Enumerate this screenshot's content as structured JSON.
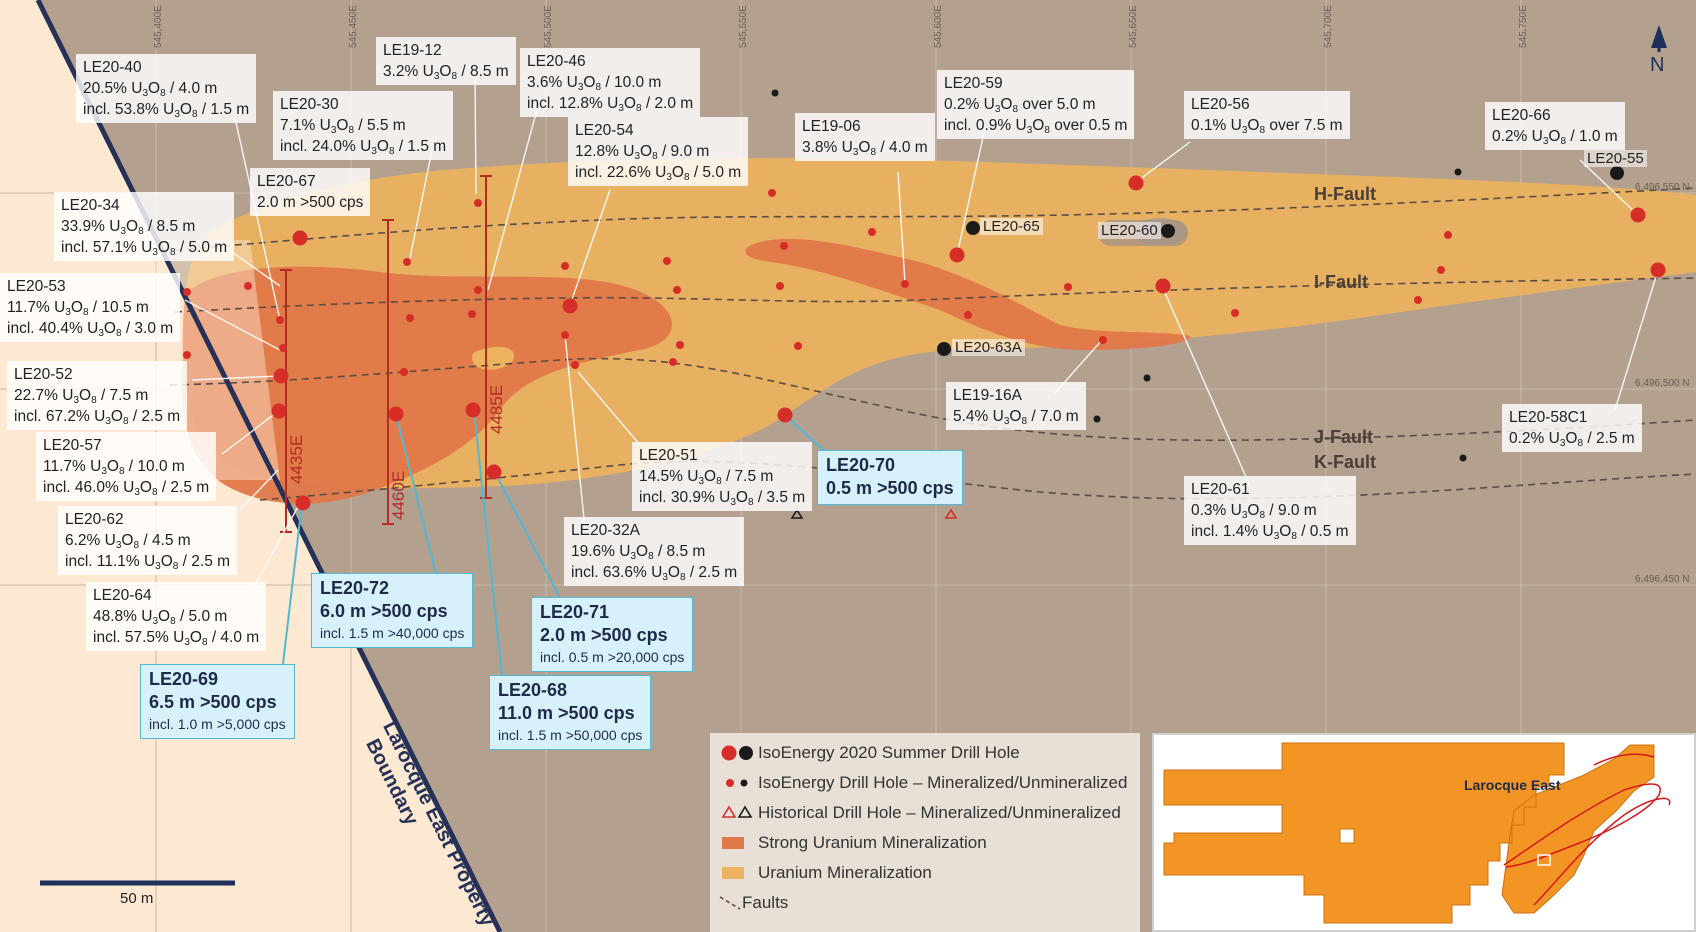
{
  "colors": {
    "background": "#b3a08f",
    "boundary_fill": "#fde8d2",
    "boundary_line": "#253156",
    "uranium_mineralization": "#ebb25f",
    "strong_uranium_mineralization": "#e07848",
    "mineralized_hole": "#d62d28",
    "unmineralized_hole": "#1a1a1a",
    "cps_box_fill": "#d7f1fb",
    "cps_box_border": "#53b7d6",
    "section_line": "#b42a24",
    "inset_property": "#f39524"
  },
  "grid": {
    "eastings": [
      "545,400E",
      "545,450E",
      "545,500E",
      "545,550E",
      "545,600E",
      "545,650E",
      "545,700E",
      "545,750E"
    ],
    "northings": [
      "6,496,550 N",
      "6,496,500 N",
      "6,496,450 N"
    ]
  },
  "north_label": "N",
  "faults": [
    "H-Fault",
    "I-Fault",
    "J-Fault",
    "K-Fault"
  ],
  "sections": [
    "4435E",
    "4460E",
    "4485E"
  ],
  "boundary_label": [
    "Larocque East Property",
    "Boundary"
  ],
  "assay_labels": [
    {
      "hole": "LE20-40",
      "l1": [
        "20.5% U",
        "3",
        "O",
        "8",
        " / 4.0 m"
      ],
      "l2": [
        "incl. 53.8% U",
        "3",
        "O",
        "8",
        " / 1.5 m"
      ]
    },
    {
      "hole": "LE19-12",
      "l1": [
        "3.2% U",
        "3",
        "O",
        "8",
        " / 8.5 m"
      ],
      "l2": null
    },
    {
      "hole": "LE20-46",
      "l1": [
        "3.6% U",
        "3",
        "O",
        "8",
        " / 10.0 m"
      ],
      "l2": [
        "incl. 12.8% U",
        "3",
        "O",
        "8",
        " / 2.0 m"
      ]
    },
    {
      "hole": "LE20-30",
      "l1": [
        "7.1% U",
        "3",
        "O",
        "8",
        " / 5.5 m"
      ],
      "l2": [
        "incl. 24.0% U",
        "3",
        "O",
        "8",
        " / 1.5 m"
      ]
    },
    {
      "hole": "LE20-54",
      "l1": [
        "12.8% U",
        "3",
        "O",
        "8",
        " / 9.0 m"
      ],
      "l2": [
        "incl. 22.6% U",
        "3",
        "O",
        "8",
        " / 5.0 m"
      ]
    },
    {
      "hole": "LE19-06",
      "l1": [
        "3.8% U",
        "3",
        "O",
        "8",
        " / 4.0 m"
      ],
      "l2": null
    },
    {
      "hole": "LE20-59",
      "l1": [
        "0.2% U",
        "3",
        "O",
        "8",
        " over 5.0 m"
      ],
      "l2": [
        "incl. 0.9% U",
        "3",
        "O",
        "8",
        " over 0.5 m"
      ]
    },
    {
      "hole": "LE20-56",
      "l1": [
        "0.1% U",
        "3",
        "O",
        "8",
        " over 7.5 m"
      ],
      "l2": null
    },
    {
      "hole": "LE20-66",
      "l1": [
        "0.2% U",
        "3",
        "O",
        "8",
        " / 1.0 m"
      ],
      "l2": null
    },
    {
      "hole": "LE20-67",
      "l1": [
        "2.0 m >500 cps",
        "",
        "",
        "",
        ""
      ],
      "l2": null
    },
    {
      "hole": "LE20-34",
      "l1": [
        "33.9% U",
        "3",
        "O",
        "8",
        " / 8.5 m"
      ],
      "l2": [
        "incl. 57.1% U",
        "3",
        "O",
        "8",
        " / 5.0 m"
      ]
    },
    {
      "hole": "LE20-53",
      "l1": [
        "11.7% U",
        "3",
        "O",
        "8",
        " / 10.5 m"
      ],
      "l2": [
        "incl. 40.4% U",
        "3",
        "O",
        "8",
        " / 3.0 m"
      ]
    },
    {
      "hole": "LE20-52",
      "l1": [
        "22.7% U",
        "3",
        "O",
        "8",
        " / 7.5 m"
      ],
      "l2": [
        "incl. 67.2% U",
        "3",
        "O",
        "8",
        " / 2.5 m"
      ]
    },
    {
      "hole": "LE20-57",
      "l1": [
        "11.7% U",
        "3",
        "O",
        "8",
        " / 10.0 m"
      ],
      "l2": [
        "incl. 46.0% U",
        "3",
        "O",
        "8",
        " / 2.5 m"
      ]
    },
    {
      "hole": "LE20-62",
      "l1": [
        "6.2% U",
        "3",
        "O",
        "8",
        " / 4.5 m"
      ],
      "l2": [
        "incl. 11.1% U",
        "3",
        "O",
        "8",
        " / 2.5 m"
      ]
    },
    {
      "hole": "LE20-64",
      "l1": [
        "48.8% U",
        "3",
        "O",
        "8",
        " / 5.0 m"
      ],
      "l2": [
        "incl. 57.5% U",
        "3",
        "O",
        "8",
        " / 4.0 m"
      ]
    },
    {
      "hole": "LE20-51",
      "l1": [
        "14.5% U",
        "3",
        "O",
        "8",
        " / 7.5 m"
      ],
      "l2": [
        "incl. 30.9% U",
        "3",
        "O",
        "8",
        " / 3.5 m"
      ]
    },
    {
      "hole": "LE20-32A",
      "l1": [
        "19.6% U",
        "3",
        "O",
        "8",
        " / 8.5 m"
      ],
      "l2": [
        "incl. 63.6% U",
        "3",
        "O",
        "8",
        " / 2.5 m"
      ]
    },
    {
      "hole": "LE19-16A",
      "l1": [
        "5.4% U",
        "3",
        "O",
        "8",
        " / 7.0 m"
      ],
      "l2": null
    },
    {
      "hole": "LE20-61",
      "l1": [
        "0.3% U",
        "3",
        "O",
        "8",
        " / 9.0 m"
      ],
      "l2": [
        "incl. 1.4% U",
        "3",
        "O",
        "8",
        " / 0.5 m"
      ]
    },
    {
      "hole": "LE20-58C1",
      "l1": [
        "0.2% U",
        "3",
        "O",
        "8",
        " / 2.5 m"
      ],
      "l2": null
    }
  ],
  "cps_boxes": [
    {
      "hole": "LE20-70",
      "line1": "0.5 m >500 cps",
      "line2": null
    },
    {
      "hole": "LE20-72",
      "line1": "6.0 m >500 cps",
      "line2": "incl. 1.5 m >40,000 cps"
    },
    {
      "hole": "LE20-71",
      "line1": "2.0 m >500 cps",
      "line2": "incl. 0.5 m >20,000 cps"
    },
    {
      "hole": "LE20-68",
      "line1": "11.0 m >500 cps",
      "line2": "incl. 1.5 m >50,000 cps"
    },
    {
      "hole": "LE20-69",
      "line1": "6.5 m >500 cps",
      "line2": "incl. 1.0 m >5,000 cps"
    }
  ],
  "unmineralized_hole_labels": [
    "LE20-55",
    "LE20-65",
    "LE20-60",
    "LE20-63A"
  ],
  "legend": {
    "items": [
      "IsoEnergy 2020 Summer Drill Hole",
      "IsoEnergy Drill Hole – Mineralized/Unmineralized",
      "Historical Drill Hole – Mineralized/Unmineralized",
      "Strong Uranium Mineralization",
      "Uranium  Mineralization",
      "Faults"
    ]
  },
  "scale_bar": {
    "label": "50 m"
  },
  "inset": {
    "label": "Larocque East"
  }
}
